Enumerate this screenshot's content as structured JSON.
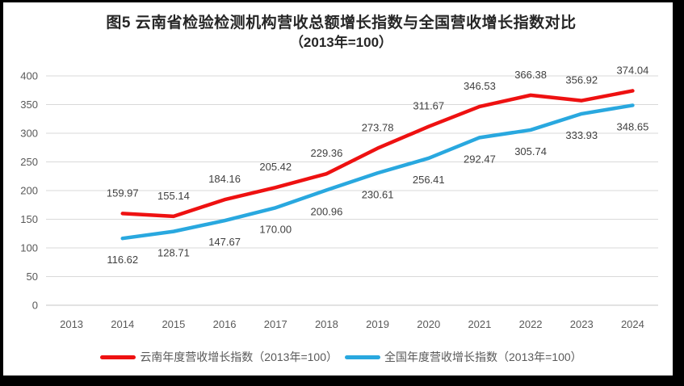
{
  "title": {
    "line1": "图5  云南省检验检测机构营收总额增长指数与全国营收增长指数对比",
    "line2": "（2013年=100）"
  },
  "chart_data": {
    "type": "line",
    "x": [
      "2013",
      "2014",
      "2015",
      "2016",
      "2017",
      "2018",
      "2019",
      "2020",
      "2021",
      "2022",
      "2023",
      "2024"
    ],
    "series": [
      {
        "name": "云南年度营收增长指数（2013年=100）",
        "color": "#ee1111",
        "label_position": "above",
        "values": [
          null,
          159.97,
          155.14,
          184.16,
          205.42,
          229.36,
          273.78,
          311.67,
          346.53,
          366.38,
          356.92,
          374.04
        ]
      },
      {
        "name": "全国年度营收增长指数（2013年=100）",
        "color": "#29a8df",
        "label_position": "below",
        "values": [
          null,
          116.62,
          128.71,
          147.67,
          170.0,
          200.96,
          230.61,
          256.41,
          292.47,
          305.74,
          333.93,
          348.65
        ]
      }
    ],
    "ylim": [
      0,
      400
    ],
    "ytick_step": 50,
    "grid": true,
    "legend_position": "bottom",
    "value_decimals": 2
  },
  "colors": {
    "gridline": "#d9d9d9",
    "axis_zero_line": "#c6c6c6",
    "tick_label": "#595959",
    "data_label": "#3f3f3f",
    "title": "#262626",
    "background": "#ffffff",
    "frame_border": "#000000"
  }
}
